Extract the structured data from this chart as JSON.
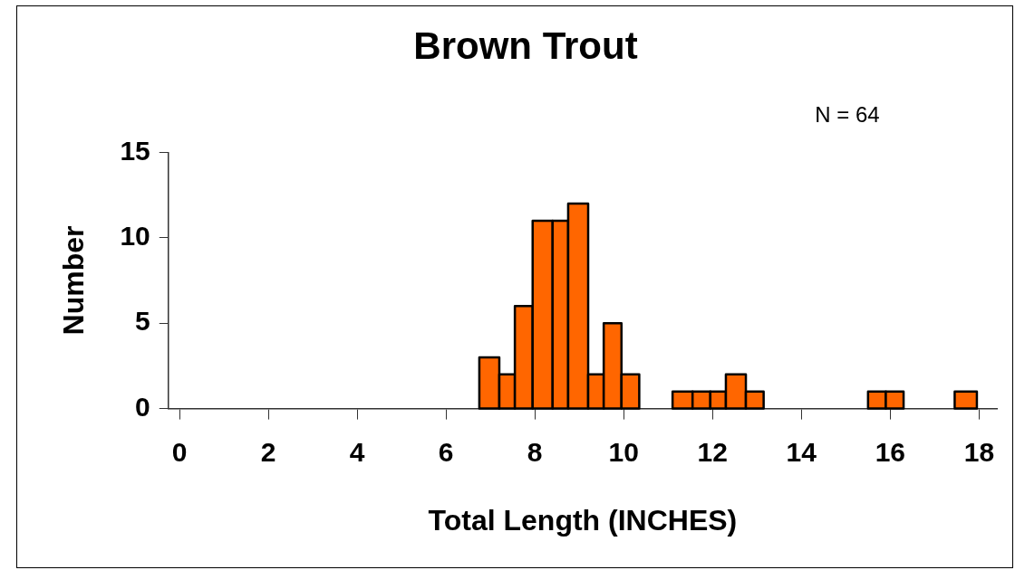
{
  "chart_data": {
    "type": "histogram",
    "title": "Brown Trout",
    "xlabel": "Total Length (INCHES)",
    "ylabel": "Number",
    "annotations": [
      "N = 64"
    ],
    "bins": [
      6.75,
      7.2,
      7.55,
      7.95,
      8.4,
      8.75,
      9.2,
      9.55,
      9.95,
      10.35,
      11.1,
      11.55,
      11.95,
      12.3,
      12.75,
      13.15,
      15.5,
      15.9,
      16.3,
      17.45,
      17.95
    ],
    "values": [
      3,
      2,
      6,
      11,
      11,
      12,
      2,
      5,
      2,
      0,
      1,
      1,
      1,
      2,
      1,
      0,
      1,
      1,
      0,
      1
    ],
    "color": "#ff6600",
    "xlim": [
      -0.25,
      18.4
    ],
    "xticks": [
      0,
      2,
      4,
      6,
      8,
      10,
      12,
      14,
      16,
      18
    ],
    "ylim": [
      0,
      15
    ],
    "yticks": [
      0,
      5,
      10,
      15
    ],
    "grid": false,
    "legend": false
  }
}
